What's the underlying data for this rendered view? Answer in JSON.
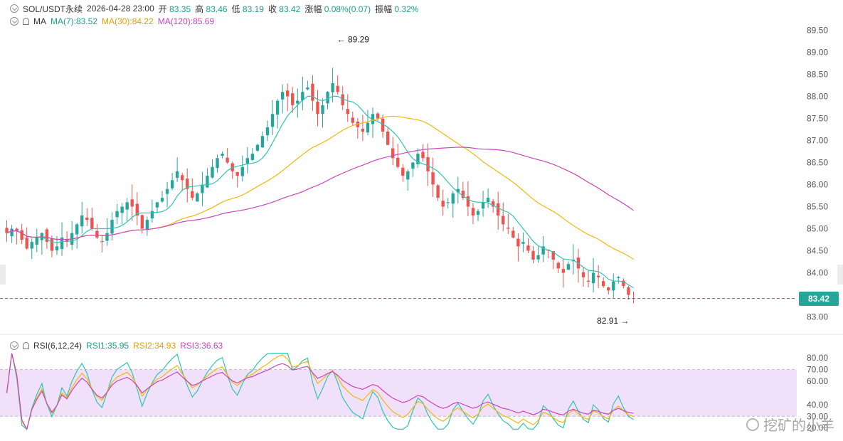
{
  "header": {
    "symbol": "SOL/USDT永续",
    "datetime": "2026-04-28 23:00",
    "open_label": "开",
    "open": "83.35",
    "high_label": "高",
    "high": "83.46",
    "low_label": "低",
    "low": "83.19",
    "close_label": "收",
    "close": "83.42",
    "change_label": "涨幅",
    "change": "0.08%(0.07)",
    "amp_label": "振幅",
    "amp": "0.32%"
  },
  "ma_legend": {
    "name": "MA",
    "ma7": "MA(7):83.52",
    "ma30": "MA(30):84.22",
    "ma120": "MA(120):85.69"
  },
  "rsi_legend": {
    "name": "RSI(6,12,24)",
    "rsi1": "RSI1:35.95",
    "rsi2": "RSI2:34.93",
    "rsi3": "RSI3:36.63"
  },
  "colors": {
    "up": "#26a69a",
    "down": "#ef5350",
    "ma7": "#2ec4b6",
    "ma30": "#f0b90b",
    "ma120": "#cc44bb",
    "rsi_band": "#f0e0fa"
  },
  "watermark": "挖矿的小羊",
  "chart_data": [
    {
      "type": "candlestick",
      "title": "SOL/USDT永续",
      "y_ticks": [
        89.5,
        89.0,
        88.5,
        88.0,
        87.5,
        87.0,
        86.5,
        86.0,
        85.5,
        85.0,
        84.5,
        84.0,
        83.5,
        83.0
      ],
      "ylim": [
        82.8,
        89.7
      ],
      "last_price": 83.42,
      "max_label": "89.29",
      "min_label": "82.91",
      "closes": [
        84.9,
        85.0,
        84.95,
        84.75,
        84.55,
        84.7,
        84.8,
        84.9,
        84.7,
        84.5,
        84.6,
        84.8,
        84.7,
        84.9,
        85.1,
        85.3,
        85.2,
        85.0,
        84.8,
        84.7,
        84.9,
        85.2,
        85.4,
        85.5,
        85.6,
        85.5,
        85.3,
        85.0,
        85.2,
        85.4,
        85.6,
        85.7,
        85.9,
        86.1,
        86.3,
        86.1,
        85.9,
        85.7,
        85.8,
        86.0,
        86.2,
        86.4,
        86.6,
        86.7,
        86.5,
        86.3,
        86.2,
        86.4,
        86.6,
        86.7,
        86.9,
        87.1,
        87.3,
        87.6,
        87.9,
        88.1,
        88.0,
        87.8,
        87.9,
        88.1,
        88.2,
        87.9,
        87.6,
        87.8,
        88.1,
        88.3,
        88.1,
        87.8,
        87.6,
        87.4,
        87.3,
        87.2,
        87.4,
        87.6,
        87.5,
        87.2,
        86.9,
        86.6,
        86.4,
        86.2,
        86.3,
        86.5,
        86.7,
        86.6,
        86.3,
        86.0,
        85.7,
        85.5,
        85.6,
        85.8,
        85.9,
        85.7,
        85.5,
        85.3,
        85.4,
        85.6,
        85.7,
        85.5,
        85.3,
        85.1,
        85.0,
        84.8,
        84.6,
        84.7,
        84.5,
        84.3,
        84.4,
        84.6,
        84.5,
        84.3,
        84.1,
        84.0,
        84.2,
        84.3,
        84.1,
        83.9,
        83.8,
        84.0,
        83.9,
        83.7,
        83.6,
        83.8,
        83.9,
        83.7,
        83.5,
        83.42
      ],
      "ma_legend_values": {
        "ma7": 83.52,
        "ma30": 84.22,
        "ma120": 85.69
      }
    },
    {
      "type": "line",
      "title": "RSI(6,12,24)",
      "y_ticks": [
        80.0,
        70.0,
        60.0,
        40.0,
        30.0,
        20.0
      ],
      "ylim": [
        18,
        85
      ],
      "band": [
        30,
        70
      ],
      "series": [
        {
          "name": "RSI1",
          "last": 35.95
        },
        {
          "name": "RSI2",
          "last": 34.93
        },
        {
          "name": "RSI3",
          "last": 36.63
        }
      ]
    }
  ]
}
